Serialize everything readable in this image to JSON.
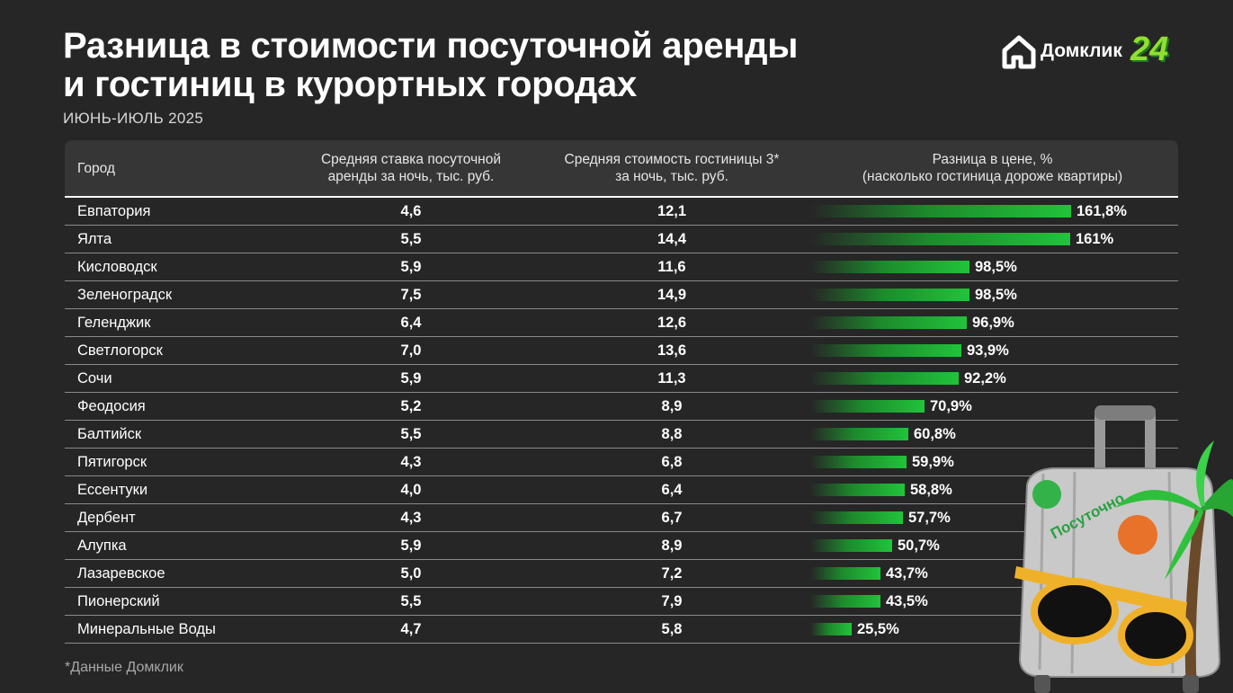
{
  "header": {
    "title_line1": "Разница в стоимости посуточной аренды",
    "title_line2": "и гостиниц в курортных городах",
    "subtitle": "ИЮНЬ-ИЮЛЬ 2025"
  },
  "logo": {
    "text": "Домклик",
    "number": "24"
  },
  "columns": {
    "city": "Город",
    "rent_line1": "Средняя ставка посуточной",
    "rent_line2": "аренды за ночь, тыс. руб.",
    "hotel_line1": "Средняя стоимость гостиницы 3*",
    "hotel_line2": "за ночь, тыс. руб.",
    "diff_line1": "Разница в цене, %",
    "diff_line2": "(насколько гостиница дороже квартиры)"
  },
  "chart_data": {
    "type": "table",
    "bar_color": "#21c33b",
    "bar_max": 161.8,
    "rows": [
      {
        "city": "Евпатория",
        "rent": "4,6",
        "hotel": "12,1",
        "diff": 161.8,
        "diff_label": "161,8%"
      },
      {
        "city": "Ялта",
        "rent": "5,5",
        "hotel": "14,4",
        "diff": 161,
        "diff_label": "161%"
      },
      {
        "city": "Кисловодск",
        "rent": "5,9",
        "hotel": "11,6",
        "diff": 98.5,
        "diff_label": "98,5%"
      },
      {
        "city": "Зеленоградск",
        "rent": "7,5",
        "hotel": "14,9",
        "diff": 98.5,
        "diff_label": "98,5%"
      },
      {
        "city": "Геленджик",
        "rent": "6,4",
        "hotel": "12,6",
        "diff": 96.9,
        "diff_label": "96,9%"
      },
      {
        "city": "Светлогорск",
        "rent": "7,0",
        "hotel": "13,6",
        "diff": 93.9,
        "diff_label": "93,9%"
      },
      {
        "city": "Сочи",
        "rent": "5,9",
        "hotel": "11,3",
        "diff": 92.2,
        "diff_label": "92,2%"
      },
      {
        "city": "Феодосия",
        "rent": "5,2",
        "hotel": "8,9",
        "diff": 70.9,
        "diff_label": "70,9%"
      },
      {
        "city": "Балтийск",
        "rent": "5,5",
        "hotel": "8,8",
        "diff": 60.8,
        "diff_label": "60,8%"
      },
      {
        "city": "Пятигорск",
        "rent": "4,3",
        "hotel": "6,8",
        "diff": 59.9,
        "diff_label": "59,9%"
      },
      {
        "city": "Ессентуки",
        "rent": "4,0",
        "hotel": "6,4",
        "diff": 58.8,
        "diff_label": "58,8%"
      },
      {
        "city": "Дербент",
        "rent": "4,3",
        "hotel": "6,7",
        "diff": 57.7,
        "diff_label": "57,7%"
      },
      {
        "city": "Алупка",
        "rent": "5,9",
        "hotel": "8,9",
        "diff": 50.7,
        "diff_label": "50,7%"
      },
      {
        "city": "Лазаревское",
        "rent": "5,0",
        "hotel": "7,2",
        "diff": 43.7,
        "diff_label": "43,7%"
      },
      {
        "city": "Пионерский",
        "rent": "5,5",
        "hotel": "7,9",
        "diff": 43.5,
        "diff_label": "43,5%"
      },
      {
        "city": "Минеральные Воды",
        "rent": "4,7",
        "hotel": "5,8",
        "diff": 25.5,
        "diff_label": "25,5%"
      }
    ]
  },
  "illustration": {
    "sticker_text": "Посуточно"
  },
  "footnote": "*Данные Домклик"
}
